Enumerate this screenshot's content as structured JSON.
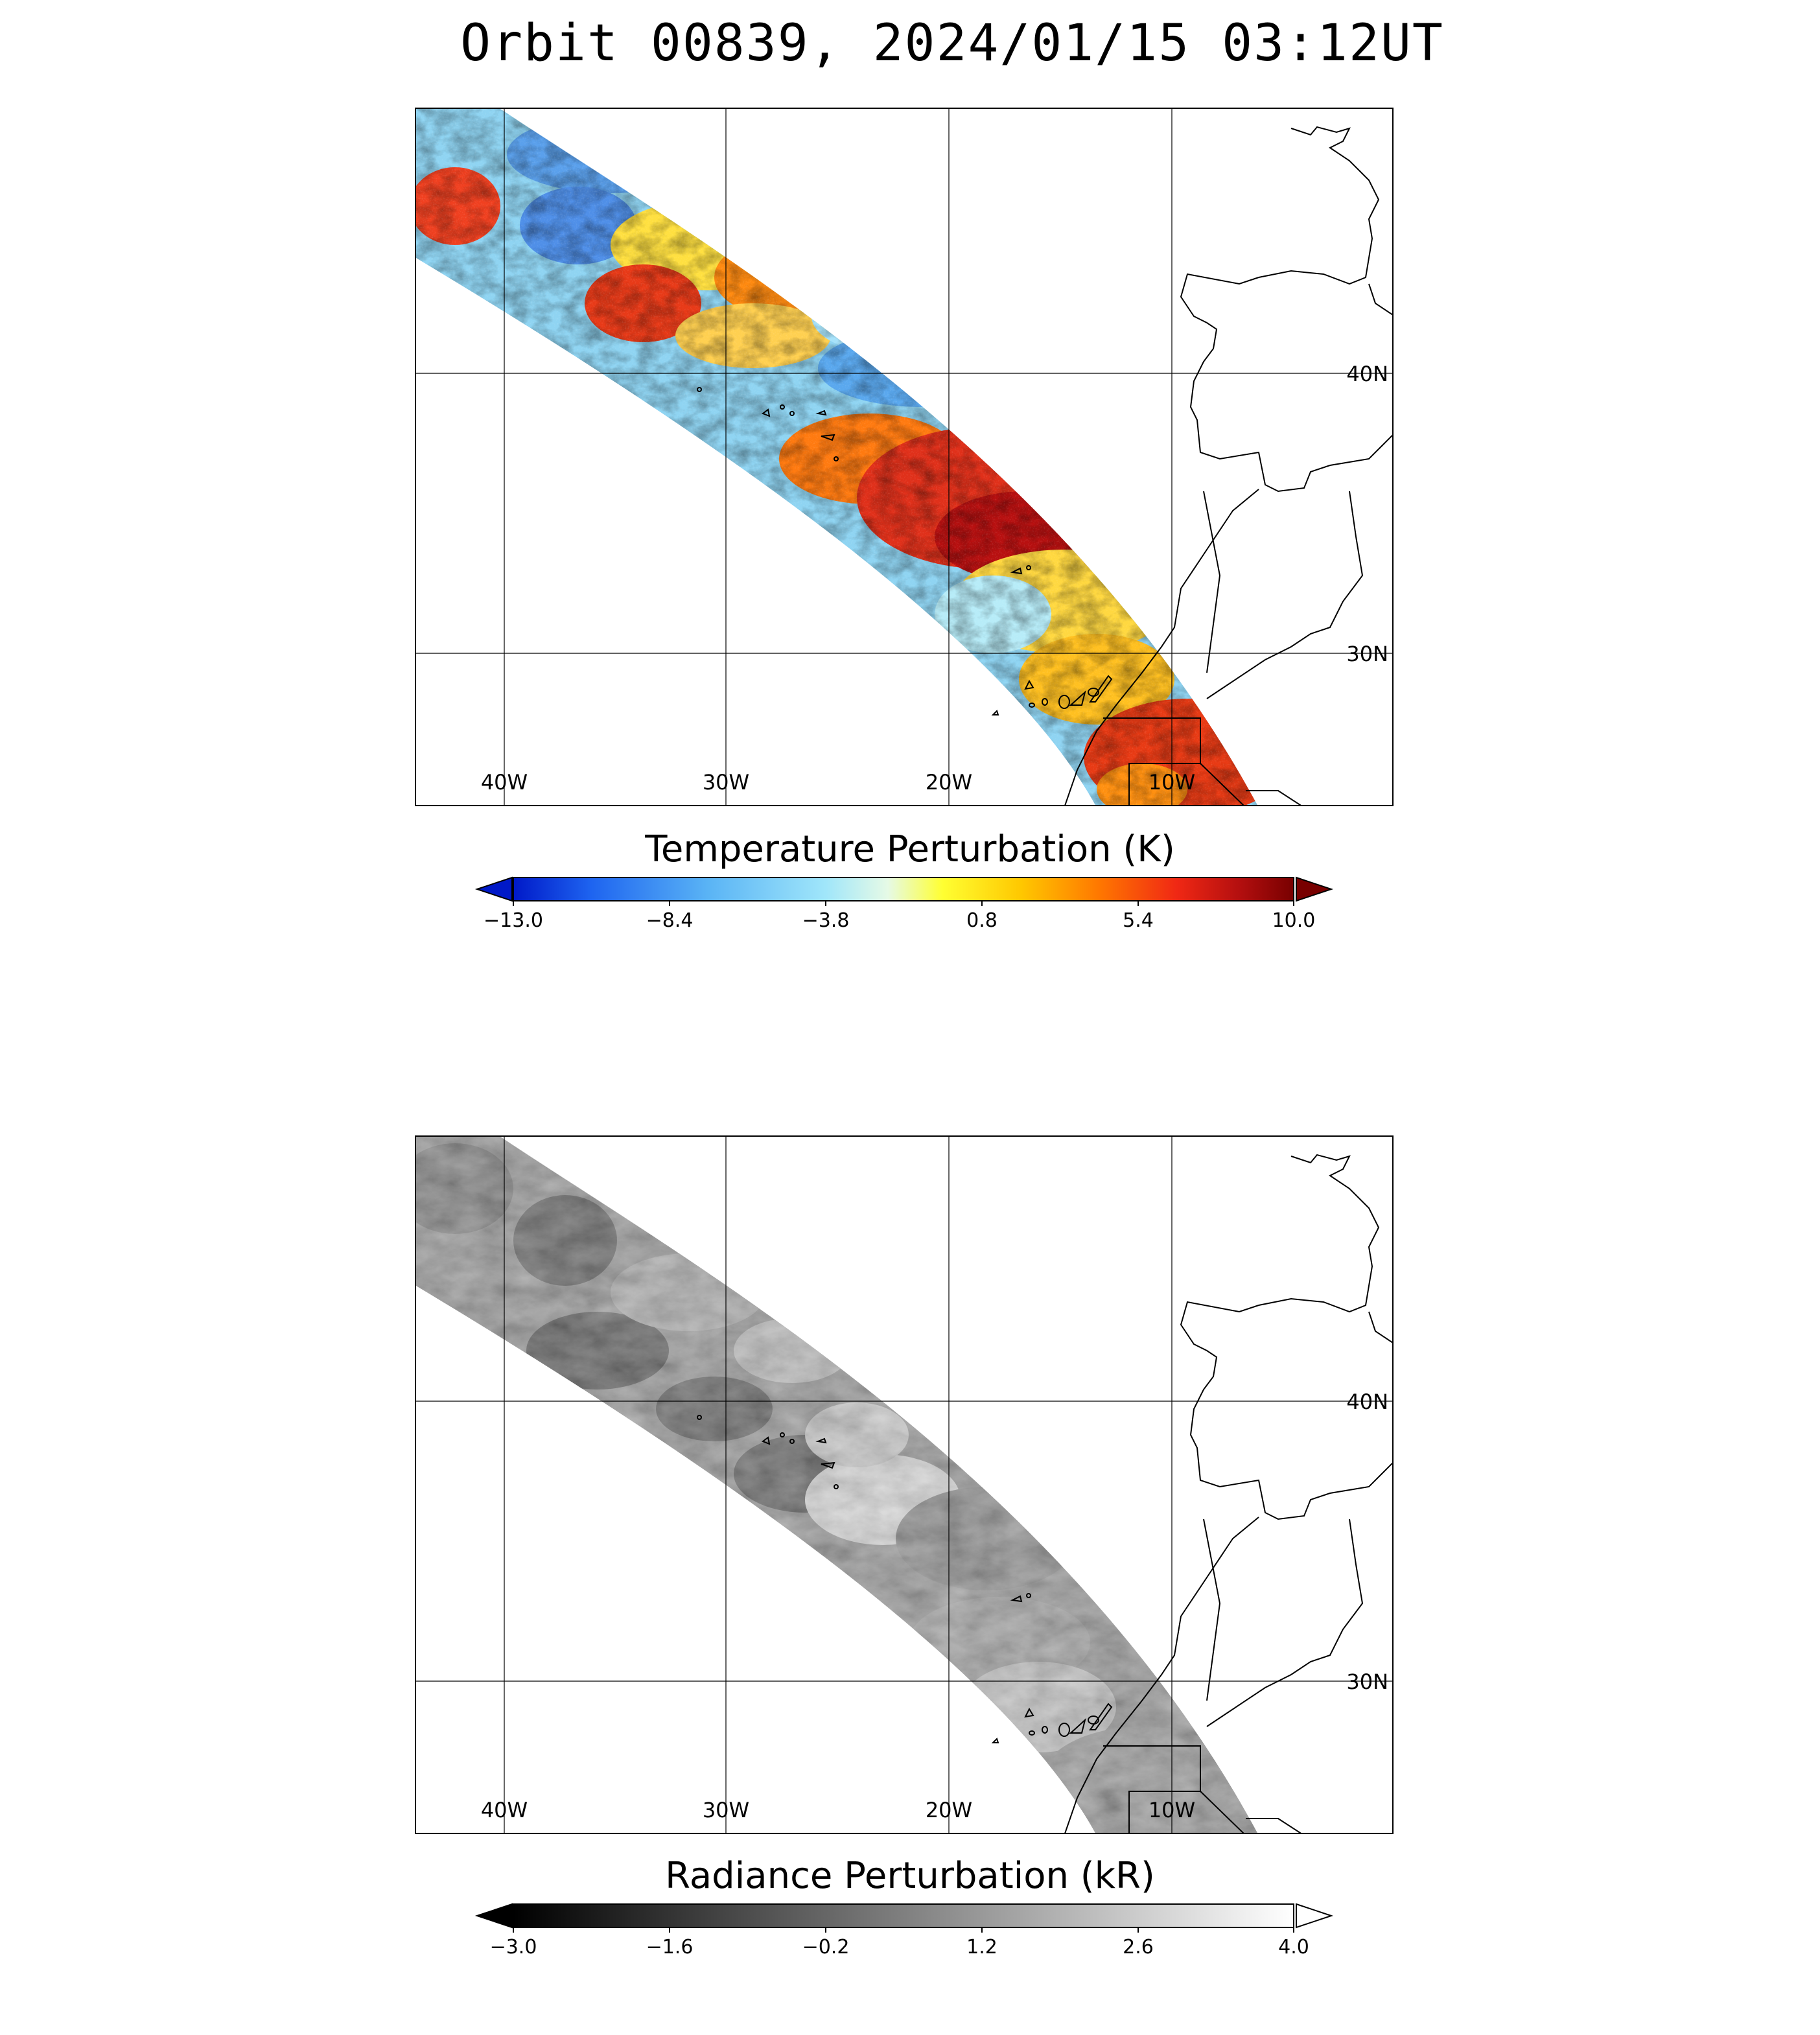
{
  "title": "Orbit 00839, 2024/01/15 03:12UT",
  "panels": [
    {
      "id": "temperature",
      "colorbar_title": "Temperature Perturbation (K)",
      "colorbar_ticks": [
        "−13.0",
        "−8.4",
        "−3.8",
        "0.8",
        "5.4",
        "10.0"
      ],
      "colormap": [
        "#0019c8",
        "#1e64f0",
        "#5ab4f5",
        "#a0e6fa",
        "#e6fae6",
        "#ffff32",
        "#ffc800",
        "#ff7800",
        "#f02814",
        "#b40f0f",
        "#780000"
      ],
      "lon_labels": [
        "40W",
        "30W",
        "20W",
        "10W"
      ],
      "lat_labels": [
        "40N",
        "30N"
      ]
    },
    {
      "id": "radiance",
      "colorbar_title": "Radiance Perturbation (kR)",
      "colorbar_ticks": [
        "−3.0",
        "−1.6",
        "−0.2",
        "1.2",
        "2.6",
        "4.0"
      ],
      "colormap": [
        "#000000",
        "#ffffff"
      ],
      "lon_labels": [
        "40W",
        "30W",
        "20W",
        "10W"
      ],
      "lat_labels": [
        "40N",
        "30N"
      ]
    }
  ]
}
